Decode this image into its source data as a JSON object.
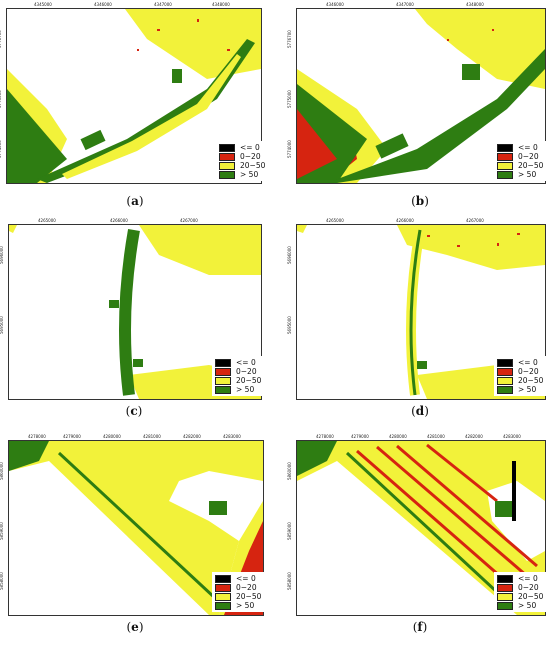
{
  "legend": {
    "items": [
      {
        "label": "<= 0",
        "color": "#000000"
      },
      {
        "label": "0−20",
        "color": "#d62410"
      },
      {
        "label": "20−50",
        "color": "#f2f23a"
      },
      {
        "label": "> 50",
        "color": "#2e7d12"
      }
    ]
  },
  "panels": [
    {
      "letter": "a",
      "xticks": [
        "4345000",
        "4346000",
        "4347000",
        "4348000"
      ],
      "yticks": [
        "5776700",
        "5775000",
        "5774000"
      ]
    },
    {
      "letter": "b",
      "xticks": [
        "4346000",
        "4347000",
        "4348000"
      ],
      "yticks": [
        "5776700",
        "5775000",
        "5774000"
      ]
    },
    {
      "letter": "c",
      "xticks": [
        "4265000",
        "4266000",
        "4267000"
      ],
      "yticks": [
        "5696000",
        "5695000"
      ]
    },
    {
      "letter": "d",
      "xticks": [
        "4265000",
        "4266000",
        "4267000"
      ],
      "yticks": [
        "5696000",
        "5695000"
      ]
    },
    {
      "letter": "e",
      "xticks": [
        "4278000",
        "4279000",
        "4280000",
        "4281000",
        "4282000",
        "4283000"
      ],
      "yticks": [
        "5860000",
        "5859000",
        "5858000"
      ]
    },
    {
      "letter": "f",
      "xticks": [
        "4278000",
        "4279000",
        "4280000",
        "4281000",
        "4282000",
        "4283000"
      ],
      "yticks": [
        "5860000",
        "5859000",
        "5858000"
      ]
    }
  ],
  "colors": {
    "yellow": "#f2f23a",
    "green": "#2e7d12",
    "red": "#d62410",
    "black": "#000000"
  }
}
